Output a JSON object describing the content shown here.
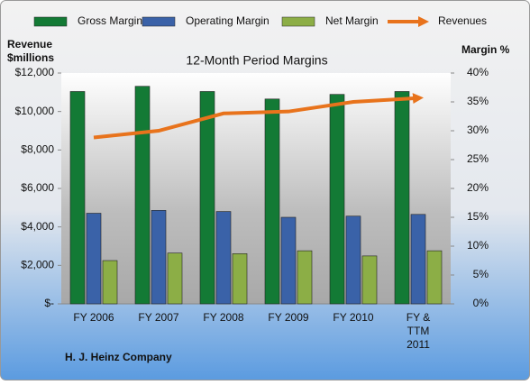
{
  "chart_data": {
    "type": "bar-line",
    "title": "12-Month Period Margins",
    "y_label": "Revenue $millions",
    "y2_label": "Margin %",
    "footer": "H. J. Heinz Company",
    "categories": [
      "FY 2006",
      "FY 2007",
      "FY 2008",
      "FY 2009",
      "FY 2010",
      "FY & TTM 2011"
    ],
    "series": [
      {
        "name": "Gross Margin",
        "type": "bar",
        "axis": "y2",
        "color": "#137a35",
        "values": [
          36.8,
          37.7,
          36.8,
          35.5,
          36.3,
          36.8
        ]
      },
      {
        "name": "Operating Margin",
        "type": "bar",
        "axis": "y2",
        "color": "#3a62a8",
        "values": [
          15.7,
          16.2,
          16.0,
          15.0,
          15.2,
          15.5
        ]
      },
      {
        "name": "Net Margin",
        "type": "bar",
        "axis": "y2",
        "color": "#8cae46",
        "values": [
          7.5,
          8.8,
          8.7,
          9.2,
          8.3,
          9.2
        ]
      },
      {
        "name": "Revenues",
        "type": "line",
        "axis": "y",
        "color": "#e8731c",
        "values": [
          8650,
          9000,
          9900,
          10000,
          10500,
          10700
        ]
      }
    ],
    "ylim": [
      0,
      12000
    ],
    "yticks": [
      {
        "value": 0,
        "label": "$-"
      },
      {
        "value": 2000,
        "label": "$2,000"
      },
      {
        "value": 4000,
        "label": "$4,000"
      },
      {
        "value": 6000,
        "label": "$6,000"
      },
      {
        "value": 8000,
        "label": "$8,000"
      },
      {
        "value": 10000,
        "label": "$10,000"
      },
      {
        "value": 12000,
        "label": "$12,000"
      }
    ],
    "y2lim": [
      0,
      40
    ],
    "y2ticks": [
      {
        "value": 0,
        "label": "0%"
      },
      {
        "value": 5,
        "label": "5%"
      },
      {
        "value": 10,
        "label": "10%"
      },
      {
        "value": 15,
        "label": "15%"
      },
      {
        "value": 20,
        "label": "20%"
      },
      {
        "value": 25,
        "label": "25%"
      },
      {
        "value": 30,
        "label": "30%"
      },
      {
        "value": 35,
        "label": "35%"
      },
      {
        "value": 40,
        "label": "40%"
      }
    ],
    "legend": "top",
    "grid": false
  }
}
